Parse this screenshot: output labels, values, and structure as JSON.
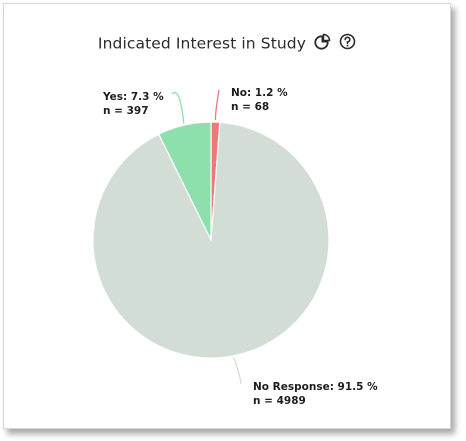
{
  "chart_data": {
    "type": "pie",
    "title": "Indicated Interest in Study",
    "slices": [
      {
        "name": "No",
        "percent": 1.2,
        "percent_label": "1.2 %",
        "n": 68,
        "n_label": "n = 68",
        "color": "#ec7a7a"
      },
      {
        "name": "No Response",
        "percent": 91.5,
        "percent_label": "91.5 %",
        "n": 4989,
        "n_label": "n = 4989",
        "color": "#d2ded5"
      },
      {
        "name": "Yes",
        "percent": 7.3,
        "percent_label": "7.3 %",
        "n": 397,
        "n_label": "n = 397",
        "color": "#8ddfac"
      }
    ]
  },
  "icons": {
    "chart_type": "pie-chart-icon",
    "help": "help-icon"
  }
}
